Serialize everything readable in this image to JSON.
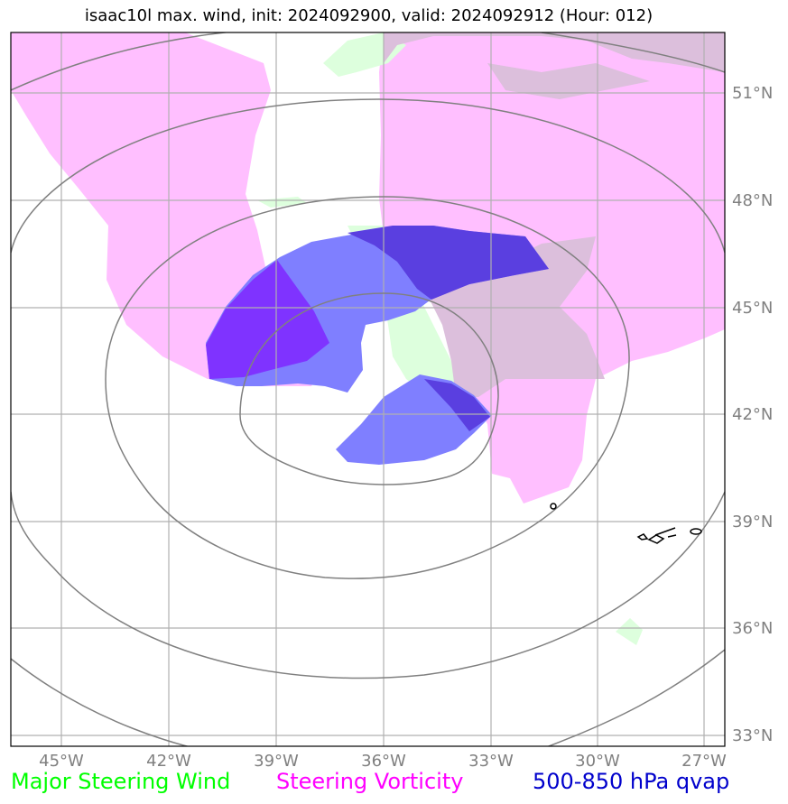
{
  "title": "isaac10l max. wind, init: 2024092900, valid: 2024092912 (Hour: 012)",
  "lon_labels": [
    "45°W",
    "42°W",
    "39°W",
    "36°W",
    "33°W",
    "30°W",
    "27°W"
  ],
  "lat_labels": [
    "51°N",
    "48°N",
    "45°N",
    "42°N",
    "39°N",
    "36°N",
    "33°N"
  ],
  "legend": [
    {
      "label": "Major Steering Wind",
      "color": "#00ff00"
    },
    {
      "label": "Steering Vorticity",
      "color": "#ff00ff"
    },
    {
      "label": "500-850 hPa qvap",
      "color": "#0000cc"
    }
  ],
  "colors": {
    "vorticity_fill": "#ffbfff",
    "wind_fill": "#ddffdd",
    "overlap_fill": "#dcbfdc",
    "qvap_fill": "#7f7fff",
    "qvap_dark_fill": "#5a3fe0",
    "qvap_core_fill": "#7f33ff",
    "gridline": "#b0b0b0",
    "contour": "#808080",
    "coastline": "#000000"
  }
}
